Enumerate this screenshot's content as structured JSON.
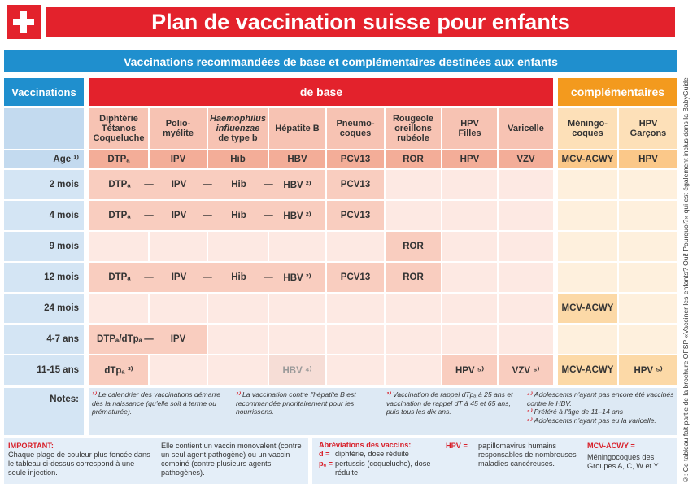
{
  "header": {
    "title": "Plan de vaccination suisse pour enfants"
  },
  "banner": "Vaccinations recommandées de base et complémentaires destinées aux enfants",
  "groups": {
    "vaccinations": "Vaccinations",
    "base": "de base",
    "complementary": "complémentaires"
  },
  "age_label": "Age ¹⁾",
  "separator": "—",
  "columns": [
    {
      "lines": [
        "Diphtérie",
        "Tétanos",
        "Coqueluche"
      ],
      "code": "DTPₐ"
    },
    {
      "lines": [
        "Polio-",
        "myélite"
      ],
      "code": "IPV"
    },
    {
      "lines": [
        "Haemophilus",
        "influenzae",
        "de type b"
      ],
      "code": "Hib"
    },
    {
      "lines": [
        "Hépatite B"
      ],
      "code": "HBV"
    },
    {
      "lines": [
        "Pneumo-",
        "coques"
      ],
      "code": "PCV13"
    },
    {
      "lines": [
        "Rougeole",
        "oreillons",
        "rubéole"
      ],
      "code": "ROR"
    },
    {
      "lines": [
        "HPV",
        "Filles"
      ],
      "code": "HPV"
    },
    {
      "lines": [
        "Varicelle"
      ],
      "code": "VZV"
    },
    {
      "lines": [
        "Méningo-",
        "coques"
      ],
      "code": "MCV-ACWY"
    },
    {
      "lines": [
        "HPV",
        "Garçons"
      ],
      "code": "HPV"
    }
  ],
  "rows": [
    {
      "age": "2 mois",
      "cells": [
        {
          "text": "DTPₐ"
        },
        {
          "text": "IPV",
          "joined": true
        },
        {
          "text": "Hib",
          "joined": true
        },
        {
          "text": "HBV ²⁾",
          "joined": true
        },
        {
          "text": "PCV13"
        },
        null,
        null,
        null,
        null,
        null
      ]
    },
    {
      "age": "4 mois",
      "cells": [
        {
          "text": "DTPₐ"
        },
        {
          "text": "IPV",
          "joined": true
        },
        {
          "text": "Hib",
          "joined": true
        },
        {
          "text": "HBV ²⁾",
          "joined": true
        },
        {
          "text": "PCV13"
        },
        null,
        null,
        null,
        null,
        null
      ]
    },
    {
      "age": "9 mois",
      "cells": [
        null,
        null,
        null,
        null,
        null,
        {
          "text": "ROR"
        },
        null,
        null,
        null,
        null
      ]
    },
    {
      "age": "12 mois",
      "cells": [
        {
          "text": "DTPₐ"
        },
        {
          "text": "IPV",
          "joined": true
        },
        {
          "text": "Hib",
          "joined": true
        },
        {
          "text": "HBV ²⁾",
          "joined": true
        },
        {
          "text": "PCV13"
        },
        {
          "text": "ROR"
        },
        null,
        null,
        null,
        null
      ]
    },
    {
      "age": "24 mois",
      "cells": [
        null,
        null,
        null,
        null,
        null,
        null,
        null,
        null,
        {
          "text": "MCV-ACWY"
        },
        null
      ]
    },
    {
      "age": "4-7 ans",
      "cells": [
        {
          "text": "DTPₐ/dTpₐ"
        },
        {
          "text": "IPV",
          "joined": true
        },
        null,
        null,
        null,
        null,
        null,
        null,
        null,
        null
      ]
    },
    {
      "age": "11-15 ans",
      "cells": [
        {
          "text": "dTpₐ ³⁾"
        },
        null,
        null,
        {
          "text": "HBV ⁴⁾",
          "optional": true
        },
        null,
        null,
        {
          "text": "HPV ⁵⁾"
        },
        {
          "text": "VZV ⁶⁾"
        },
        {
          "text": "MCV-ACWY"
        },
        {
          "text": "HPV ⁵⁾"
        }
      ]
    }
  ],
  "notes": {
    "label": "Notes:",
    "items": [
      {
        "mark": "¹⁾",
        "text": "Le calendrier des vaccinations démarre dès la naissance (qu'elle soit à terme ou prématurée)."
      },
      {
        "mark": "²⁾",
        "text": "La vaccination contre l'hépatite B est recommandée prioritairement pour les nourrissons."
      },
      {
        "mark": "³⁾",
        "text": "Vaccination de rappel dTpₐ à 25 ans et vaccination de rappel dT à 45 et 65 ans, puis tous les dix ans."
      },
      {
        "mark": "⁴⁾",
        "text": "Adolescents n'ayant pas encore été vaccinés contre le HBV."
      },
      {
        "mark": "⁵⁾",
        "text": "Préféré à l'âge de 11–14 ans"
      },
      {
        "mark": "⁶⁾",
        "text": "Adolescents n'ayant pas eu la varicelle."
      }
    ]
  },
  "important": {
    "label": "IMPORTANT:",
    "text": "Chaque plage de couleur plus foncée dans le tableau ci-dessus correspond à une seule injection.",
    "text2": "Elle contient un vaccin monovalent (contre un seul agent pathogène) ou un vaccin combiné (contre plusieurs agents pathogènes)."
  },
  "abbreviations": {
    "title": "Abréviations des vaccins:",
    "items": [
      {
        "abbr": "d =",
        "text": "diphtérie, dose réduite"
      },
      {
        "abbr": "pₐ =",
        "text": "pertussis (coqueluche), dose réduite"
      },
      {
        "abbr": "HPV =",
        "text": "papillomavirus humains responsables de nombreuses maladies cancéreuses."
      },
      {
        "abbr": "MCV-ACWY =",
        "text": "Méningocoques des Groupes A, C, W et Y"
      }
    ]
  },
  "credit": "©: Ce tableau fait partie de la brochure OFSP «Vacciner les enfants? Oui! Pourquoi?» qui est également inclus dans la BabyGuide"
}
